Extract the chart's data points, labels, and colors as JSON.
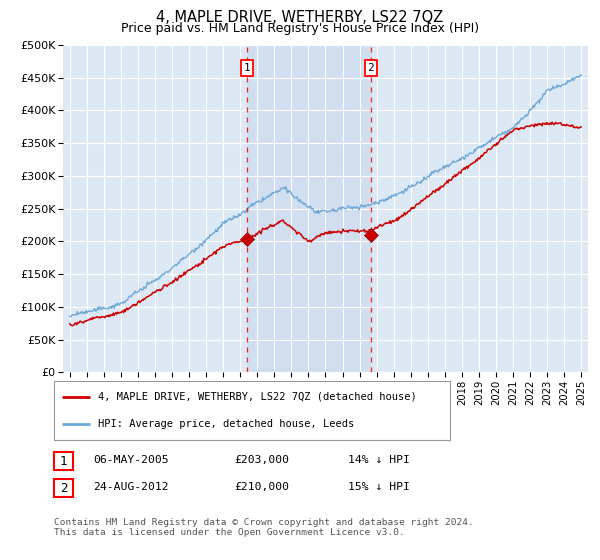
{
  "title": "4, MAPLE DRIVE, WETHERBY, LS22 7QZ",
  "subtitle": "Price paid vs. HM Land Registry's House Price Index (HPI)",
  "ytick_labels": [
    "£0",
    "£50K",
    "£100K",
    "£150K",
    "£200K",
    "£250K",
    "£300K",
    "£350K",
    "£400K",
    "£450K",
    "£500K"
  ],
  "yticks": [
    0,
    50000,
    100000,
    150000,
    200000,
    250000,
    300000,
    350000,
    400000,
    450000,
    500000
  ],
  "background_color": "#ffffff",
  "plot_bg_color": "#dde8f5",
  "grid_color": "#b0bec5",
  "hpi_color": "#6fa8d6",
  "price_color": "#cc0000",
  "shade_color": "#c5d8ee",
  "marker1_year": 2005.38,
  "marker2_year": 2012.65,
  "marker1_price": 203000,
  "marker2_price": 210000,
  "legend_line1": "4, MAPLE DRIVE, WETHERBY, LS22 7QZ (detached house)",
  "legend_line2": "HPI: Average price, detached house, Leeds",
  "table_row1": [
    "1",
    "06-MAY-2005",
    "£203,000",
    "14% ↓ HPI"
  ],
  "table_row2": [
    "2",
    "24-AUG-2012",
    "£210,000",
    "15% ↓ HPI"
  ],
  "footer": "Contains HM Land Registry data © Crown copyright and database right 2024.\nThis data is licensed under the Open Government Licence v3.0."
}
